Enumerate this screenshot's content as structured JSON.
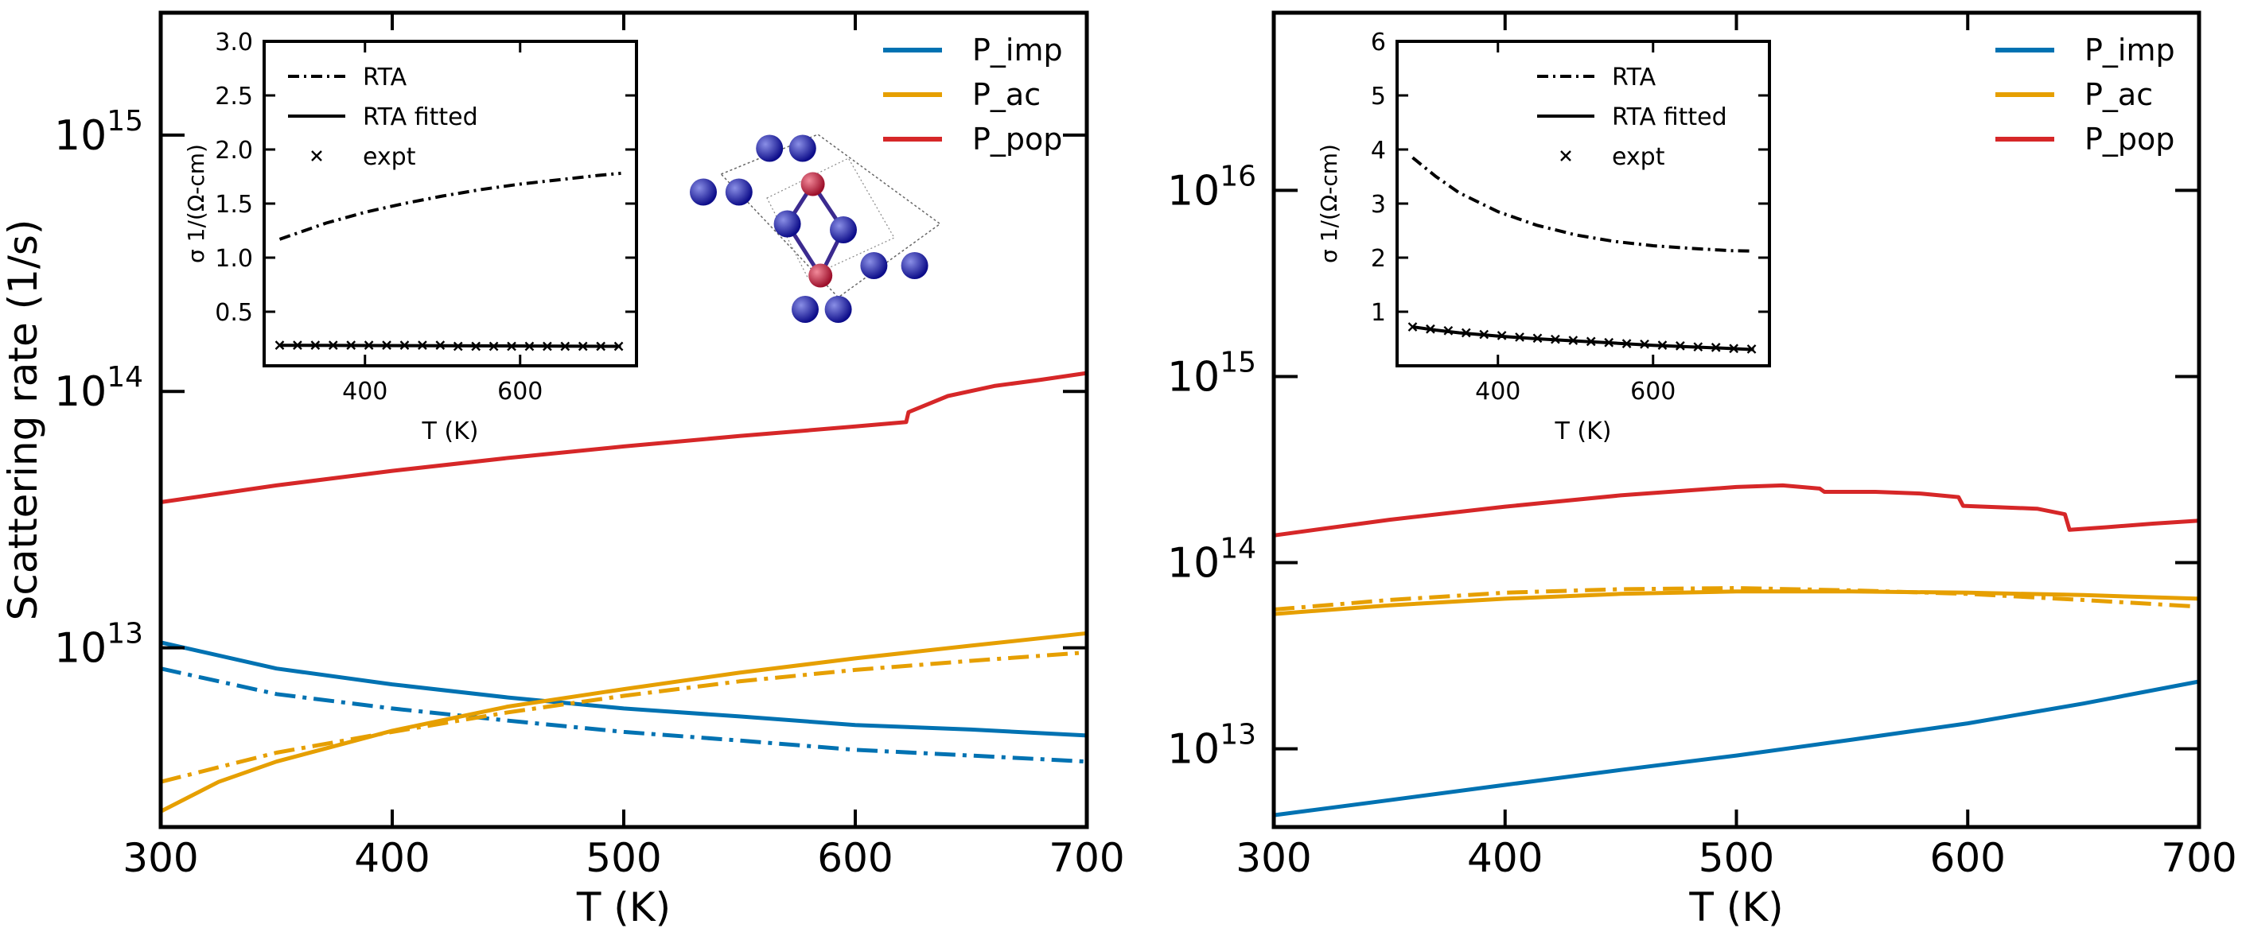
{
  "colors": {
    "imp": "#0072B2",
    "ac": "#E69F00",
    "pop": "#D62728",
    "black": "#000000"
  },
  "crystal": {
    "atoms": [
      {
        "c": "blue",
        "f": [
          0.31,
          0.17
        ]
      },
      {
        "c": "blue",
        "f": [
          0.44,
          0.17
        ]
      },
      {
        "c": "blue",
        "f": [
          0.05,
          0.39
        ]
      },
      {
        "c": "blue",
        "f": [
          0.19,
          0.39
        ]
      },
      {
        "c": "red",
        "f": [
          0.48,
          0.35
        ]
      },
      {
        "c": "blue",
        "f": [
          0.38,
          0.55
        ]
      },
      {
        "c": "blue",
        "f": [
          0.6,
          0.58
        ]
      },
      {
        "c": "red",
        "f": [
          0.51,
          0.81
        ]
      },
      {
        "c": "blue",
        "f": [
          0.72,
          0.76
        ]
      },
      {
        "c": "blue",
        "f": [
          0.88,
          0.76
        ]
      },
      {
        "c": "blue",
        "f": [
          0.45,
          0.98
        ]
      },
      {
        "c": "blue",
        "f": [
          0.58,
          0.98
        ]
      }
    ]
  },
  "chart_data": [
    {
      "type": "line",
      "panel": "left",
      "xlabel": "T (K)",
      "ylabel": "Scattering rate (1/s)",
      "xlim": [
        300,
        700
      ],
      "xticks": [
        300,
        400,
        500,
        600,
        700
      ],
      "yscale": "log",
      "ylim": [
        2000000000000.0,
        3000000000000000.0
      ],
      "ytick_exponents": [
        13,
        14,
        15
      ],
      "legend": {
        "position": "top-right",
        "entries": [
          "P_imp",
          "P_ac",
          "P_pop"
        ]
      },
      "series": [
        {
          "name": "P_imp",
          "color_key": "imp",
          "dash": "solid",
          "x": [
            300,
            350,
            400,
            450,
            500,
            550,
            600,
            650,
            700
          ],
          "y": [
            10500000000000.0,
            8300000000000.0,
            7200000000000.0,
            6400000000000.0,
            5800000000000.0,
            5400000000000.0,
            5000000000000.0,
            4800000000000.0,
            4550000000000.0
          ]
        },
        {
          "color_key": "imp",
          "dash": "dashdot",
          "x": [
            300,
            350,
            400,
            450,
            500,
            550,
            600,
            650,
            700
          ],
          "y": [
            8300000000000.0,
            6600000000000.0,
            5800000000000.0,
            5200000000000.0,
            4700000000000.0,
            4350000000000.0,
            4000000000000.0,
            3800000000000.0,
            3600000000000.0
          ]
        },
        {
          "name": "P_ac",
          "color_key": "ac",
          "dash": "solid",
          "x": [
            300,
            325,
            350,
            400,
            450,
            500,
            550,
            600,
            650,
            700
          ],
          "y": [
            2300000000000.0,
            3000000000000.0,
            3600000000000.0,
            4750000000000.0,
            5900000000000.0,
            6900000000000.0,
            8000000000000.0,
            9100000000000.0,
            10200000000000.0,
            11400000000000.0
          ]
        },
        {
          "color_key": "ac",
          "dash": "dashdot",
          "x": [
            300,
            350,
            400,
            450,
            500,
            550,
            600,
            650,
            700
          ],
          "y": [
            3000000000000.0,
            3900000000000.0,
            4700000000000.0,
            5600000000000.0,
            6500000000000.0,
            7400000000000.0,
            8200000000000.0,
            8900000000000.0,
            9600000000000.0
          ]
        },
        {
          "name": "P_pop",
          "color_key": "pop",
          "dash": "solid",
          "x": [
            300,
            350,
            400,
            450,
            500,
            550,
            600,
            622,
            623,
            640,
            660,
            680,
            700
          ],
          "y": [
            37000000000000.0,
            43000000000000.0,
            49000000000000.0,
            55000000000000.0,
            61000000000000.0,
            67000000000000.0,
            73000000000000.0,
            76000000000000.0,
            83000000000000.0,
            96000000000000.0,
            105000000000000.0,
            111000000000000.0,
            118000000000000.0
          ]
        }
      ],
      "inset": {
        "type": "line",
        "xlabel": "T (K)",
        "ylabel": "σ 1/(Ω-cm)",
        "xlim": [
          270,
          750
        ],
        "ylim": [
          0.0,
          3.0
        ],
        "xticks": [
          400,
          600
        ],
        "yticks": [
          0.5,
          1.0,
          1.5,
          2.0,
          2.5,
          3.0
        ],
        "ytick_labels": [
          "0.5",
          "1.0",
          "1.5",
          "2.0",
          "2.5",
          "3.0"
        ],
        "legend": {
          "position": "top-left",
          "entries": [
            "RTA",
            "RTA fitted",
            "expt"
          ]
        },
        "series": [
          {
            "name": "RTA",
            "dash": "dashdot",
            "x": [
              290,
              350,
              400,
              450,
              500,
              550,
              600,
              650,
              700,
              730
            ],
            "y": [
              1.17,
              1.32,
              1.42,
              1.5,
              1.57,
              1.63,
              1.68,
              1.72,
              1.76,
              1.78
            ]
          },
          {
            "name": "RTA fitted",
            "dash": "solid",
            "x": [
              290,
              730
            ],
            "y": [
              0.19,
              0.18
            ]
          },
          {
            "name": "expt",
            "marker": "x",
            "x": [
              290,
              313,
              336,
              359,
              382,
              405,
              428,
              451,
              474,
              497,
              520,
              543,
              566,
              589,
              612,
              635,
              658,
              681,
              704,
              727
            ],
            "y": [
              0.19,
              0.19,
              0.19,
              0.19,
              0.19,
              0.19,
              0.19,
              0.19,
              0.19,
              0.19,
              0.18,
              0.18,
              0.18,
              0.18,
              0.18,
              0.18,
              0.18,
              0.18,
              0.18,
              0.18
            ]
          }
        ]
      }
    },
    {
      "type": "line",
      "panel": "right",
      "xlabel": "T (K)",
      "xlim": [
        300,
        700
      ],
      "xticks": [
        300,
        400,
        500,
        600,
        700
      ],
      "yscale": "log",
      "ylim": [
        3800000000000.0,
        9e+16
      ],
      "ytick_exponents": [
        13,
        14,
        15,
        16
      ],
      "legend": {
        "position": "top-right",
        "entries": [
          "P_imp",
          "P_ac",
          "P_pop"
        ]
      },
      "series": [
        {
          "name": "P_imp",
          "color_key": "imp",
          "dash": "solid",
          "x": [
            300,
            350,
            400,
            450,
            500,
            550,
            600,
            650,
            700
          ],
          "y": [
            4400000000000.0,
            5300000000000.0,
            6400000000000.0,
            7700000000000.0,
            9200000000000.0,
            11200000000000.0,
            13700000000000.0,
            17500000000000.0,
            23000000000000.0
          ]
        },
        {
          "name": "P_ac",
          "color_key": "ac",
          "dash": "solid",
          "x": [
            300,
            350,
            400,
            450,
            500,
            550,
            600,
            650,
            700
          ],
          "y": [
            53000000000000.0,
            59000000000000.0,
            64000000000000.0,
            68000000000000.0,
            70000000000000.0,
            70000000000000.0,
            69000000000000.0,
            67000000000000.0,
            64000000000000.0
          ]
        },
        {
          "color_key": "ac",
          "dash": "dashdot",
          "x": [
            300,
            350,
            400,
            450,
            500,
            550,
            600,
            650,
            700
          ],
          "y": [
            56000000000000.0,
            63000000000000.0,
            69000000000000.0,
            72000000000000.0,
            73000000000000.0,
            71000000000000.0,
            68000000000000.0,
            63000000000000.0,
            58000000000000.0
          ]
        },
        {
          "name": "P_pop",
          "color_key": "pop",
          "dash": "solid",
          "x": [
            300,
            350,
            400,
            450,
            500,
            520,
            536,
            538,
            560,
            580,
            596,
            598,
            630,
            642,
            644,
            660,
            680,
            700
          ],
          "y": [
            140000000000000.0,
            170000000000000.0,
            200000000000000.0,
            230000000000000.0,
            255000000000000.0,
            260000000000000.0,
            250000000000000.0,
            240000000000000.0,
            240000000000000.0,
            235000000000000.0,
            225000000000000.0,
            202000000000000.0,
            195000000000000.0,
            182000000000000.0,
            150000000000000.0,
            155000000000000.0,
            162000000000000.0,
            168000000000000.0
          ]
        }
      ],
      "inset": {
        "type": "line",
        "xlabel": "T (K)",
        "ylabel": "σ 1/(Ω-cm)",
        "xlim": [
          270,
          750
        ],
        "ylim": [
          0.0,
          6.0
        ],
        "xticks": [
          400,
          600
        ],
        "yticks": [
          1,
          2,
          3,
          4,
          5,
          6
        ],
        "ytick_labels": [
          "1",
          "2",
          "3",
          "4",
          "5",
          "6"
        ],
        "legend": {
          "position": "top-center",
          "entries": [
            "RTA",
            "RTA fitted",
            "expt"
          ]
        },
        "series": [
          {
            "name": "RTA",
            "dash": "dashdot",
            "x": [
              290,
              320,
              350,
              400,
              450,
              500,
              550,
              600,
              650,
              700,
              730
            ],
            "y": [
              3.85,
              3.5,
              3.2,
              2.85,
              2.6,
              2.42,
              2.3,
              2.22,
              2.17,
              2.13,
              2.12
            ]
          },
          {
            "name": "RTA fitted",
            "dash": "solid",
            "x": [
              290,
              320,
              350,
              400,
              450,
              500,
              550,
              600,
              650,
              700,
              730
            ],
            "y": [
              0.72,
              0.66,
              0.61,
              0.55,
              0.5,
              0.46,
              0.42,
              0.38,
              0.35,
              0.32,
              0.3
            ]
          },
          {
            "name": "expt",
            "marker": "x",
            "x": [
              290,
              313,
              336,
              359,
              382,
              405,
              428,
              451,
              474,
              497,
              520,
              543,
              566,
              589,
              612,
              635,
              658,
              681,
              704,
              727
            ],
            "y": [
              0.72,
              0.68,
              0.65,
              0.61,
              0.58,
              0.56,
              0.53,
              0.51,
              0.49,
              0.47,
              0.45,
              0.43,
              0.41,
              0.4,
              0.38,
              0.37,
              0.35,
              0.34,
              0.32,
              0.31
            ]
          }
        ]
      }
    }
  ]
}
